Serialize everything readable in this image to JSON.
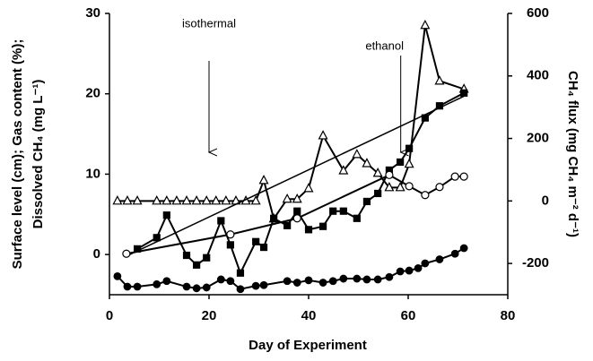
{
  "chart_data": {
    "type": "line",
    "x_label": "Day of Experiment",
    "y_label": [
      "Surface level (cm); Gas content (%);",
      "Dissolved CH₄ (mg L⁻¹)"
    ],
    "y2_label": "CH₄ flux (mg CH₄ m⁻² d⁻¹)",
    "annotations": [
      {
        "text": "isothermal",
        "x": 20
      },
      {
        "text": "ethanol",
        "x": 58.5
      }
    ],
    "xlim": [
      0,
      80
    ],
    "xticks": [
      0,
      20,
      40,
      60,
      80
    ],
    "ylim": [
      -5,
      30
    ],
    "yticks": [
      0,
      10,
      20,
      30
    ],
    "y2lim": [
      -300,
      600
    ],
    "y2ticks": [
      -200,
      0,
      200,
      400,
      600
    ],
    "series": [
      {
        "axis": "y2",
        "marker": "triangle-open",
        "color": "#000000",
        "x": [
          1.6,
          3.6,
          5.6,
          9.5,
          11.5,
          13.5,
          15.5,
          17.5,
          19.5,
          21.4,
          23.4,
          25.4,
          27.4,
          29.4,
          31,
          33,
          35.7,
          37.7,
          40,
          42.9,
          47,
          49.7,
          51.7,
          53.9,
          56.2,
          58.4,
          60.2,
          63.4,
          66.3,
          71.2
        ],
        "values": [
          0,
          0,
          0,
          0,
          0,
          0,
          0,
          0,
          0,
          0,
          0,
          0,
          0,
          0,
          66,
          -57,
          6,
          6,
          40,
          209,
          97,
          149,
          120,
          89,
          43,
          43,
          118,
          562,
          384,
          358
        ]
      },
      {
        "axis": "y",
        "marker": "square",
        "color": "#000000",
        "x": [
          5.6,
          9.5,
          11.5,
          15.5,
          17.5,
          19.5,
          22.4,
          24.3,
          26.3,
          29.4,
          31,
          33,
          35.7,
          37.7,
          40,
          42.9,
          44.9,
          47,
          49.7,
          51.7,
          53.9,
          56.2,
          58.4,
          60.2,
          63.4,
          66.3,
          71.2
        ],
        "values": [
          0.7,
          2.1,
          4.9,
          -0.1,
          -1.3,
          -0.4,
          4.2,
          1.2,
          -2.3,
          1.6,
          0.9,
          4.5,
          3.6,
          5.4,
          3.1,
          3.5,
          5.4,
          5.4,
          4.5,
          6.6,
          7.6,
          10.5,
          11.5,
          13.2,
          17,
          18.5,
          20.1
        ]
      },
      {
        "axis": "y",
        "marker": "none",
        "color": "#000000",
        "x": [
          3.4,
          71.2
        ],
        "values": [
          -0.2,
          19.7
        ]
      },
      {
        "axis": "y",
        "marker": "circle-open",
        "color": "#000000",
        "x": [
          3.4,
          24.3,
          37.7,
          56.2,
          60.2,
          63.4,
          66.3,
          69.4,
          71.2
        ],
        "values": [
          0.1,
          2.5,
          4.5,
          9.9,
          8.5,
          7.4,
          8.4,
          9.7,
          9.7
        ]
      },
      {
        "axis": "y",
        "marker": "circle",
        "color": "#000000",
        "x": [
          1.6,
          3.6,
          5.6,
          9.5,
          11.5,
          15.5,
          17.5,
          19.5,
          22.4,
          24.3,
          26.3,
          29.4,
          31,
          35.7,
          37.7,
          40,
          42.9,
          44.9,
          47,
          49.7,
          51.7,
          53.9,
          56.2,
          58.4,
          60.2,
          62,
          63.4,
          66.3,
          69.4,
          71.2
        ],
        "values": [
          -2.7,
          -4.0,
          -4.0,
          -3.7,
          -3.3,
          -4.0,
          -4.2,
          -4.1,
          -3.1,
          -3.3,
          -4.3,
          -3.9,
          -3.8,
          -3.3,
          -3.5,
          -3.2,
          -3.5,
          -3.3,
          -3.0,
          -3.0,
          -3.1,
          -3.1,
          -2.8,
          -2.1,
          -2.0,
          -1.7,
          -1.1,
          -0.6,
          0.1,
          0.8
        ]
      }
    ]
  }
}
